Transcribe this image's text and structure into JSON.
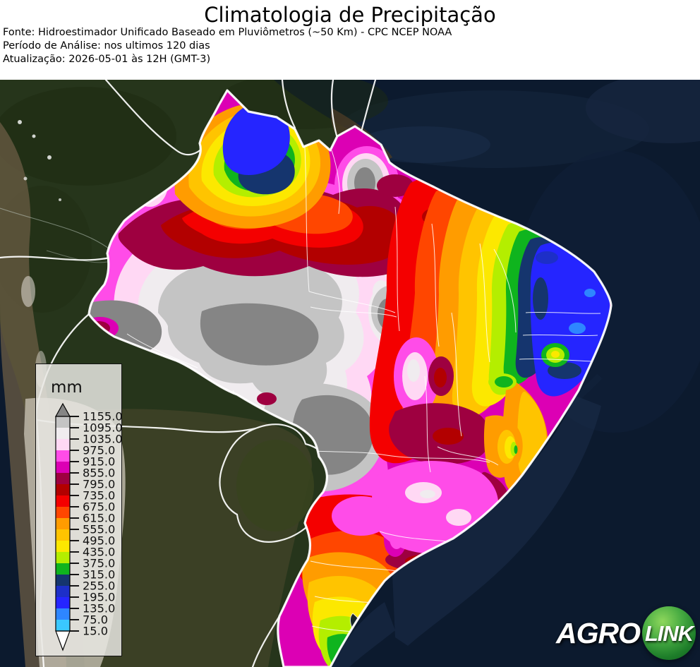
{
  "header": {
    "title": "Climatologia de Precipitação",
    "source": "Fonte: Hidroestimador Unificado Baseado em Pluviômetros (~50 Km) - CPC NCEP NOAA",
    "period": "Período de Análise: nos ultimos 120 dias",
    "updated": "Atualização: 2026-05-01 às 12H (GMT-3)"
  },
  "map": {
    "legend": {
      "unit": "mm",
      "tick_labels": [
        "1155.0",
        "1095.0",
        "1035.0",
        "975.0",
        "915.0",
        "855.0",
        "795.0",
        "735.0",
        "675.0",
        "615.0",
        "555.0",
        "495.0",
        "435.0",
        "375.0",
        "315.0",
        "255.0",
        "195.0",
        "135.0",
        "75.0",
        "15.0"
      ],
      "cell_colors": [
        "#c4c4c4",
        "#f0ecef",
        "#ffd8f4",
        "#ff4ce8",
        "#dc00b4",
        "#9e0040",
        "#b20000",
        "#f40000",
        "#ff4600",
        "#ff9c00",
        "#ffc400",
        "#fce800",
        "#b4ee00",
        "#0fb41e",
        "#15356e",
        "#1d2fc8",
        "#2525ff",
        "#2e86ff",
        "#3ac8ff"
      ],
      "above_color": "#858585",
      "below_color": "#ffffff"
    },
    "logo": {
      "agro": "AGRO",
      "link": "LINK"
    }
  },
  "chart_data": {
    "type": "heatmap",
    "title": "Climatologia de Precipitação",
    "unit": "mm",
    "legend_position": "bottom-left",
    "scale_levels": [
      15.0,
      75.0,
      135.0,
      195.0,
      255.0,
      315.0,
      375.0,
      435.0,
      495.0,
      555.0,
      615.0,
      675.0,
      735.0,
      795.0,
      855.0,
      915.0,
      975.0,
      1035.0,
      1095.0,
      1155.0
    ],
    "scale_colors_low_to_high": [
      "#3ac8ff",
      "#2e86ff",
      "#2525ff",
      "#1d2fc8",
      "#15356e",
      "#0fb41e",
      "#b4ee00",
      "#fce800",
      "#ffc400",
      "#ff9c00",
      "#ff4600",
      "#f40000",
      "#b20000",
      "#9e0040",
      "#dc00b4",
      "#ff4ce8",
      "#ffd8f4",
      "#f0ecef",
      "#c4c4c4"
    ],
    "above_scale_color": "#858585",
    "below_scale_color": "#ffffff"
  }
}
